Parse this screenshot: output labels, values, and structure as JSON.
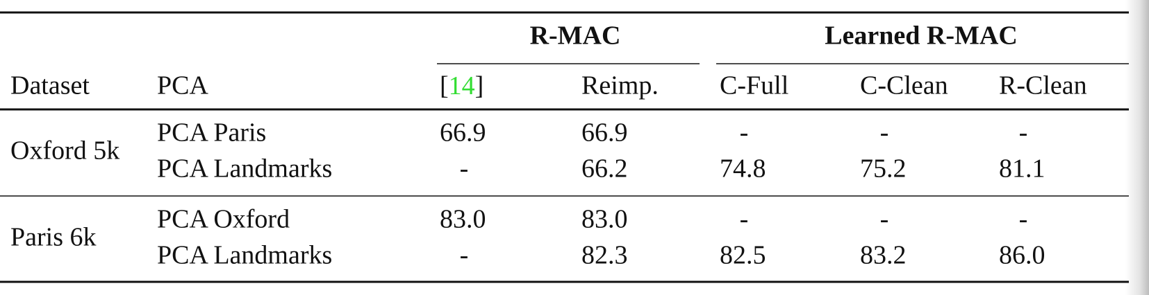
{
  "table": {
    "groups": [
      "R-MAC",
      "Learned R-MAC"
    ],
    "header": {
      "dataset": "Dataset",
      "pca": "PCA",
      "citation": {
        "open": "[",
        "ref": "14",
        "close": "]"
      },
      "columns": [
        "Reimp.",
        "C-Full",
        "C-Clean",
        "R-Clean"
      ]
    },
    "sections": [
      {
        "dataset": "Oxford 5k",
        "rows": [
          {
            "pca": "PCA Paris",
            "values": [
              "66.9",
              "66.9",
              "-",
              "-",
              "-"
            ]
          },
          {
            "pca": "PCA Landmarks",
            "values": [
              "-",
              "66.2",
              "74.8",
              "75.2",
              "81.1"
            ]
          }
        ]
      },
      {
        "dataset": "Paris 6k",
        "rows": [
          {
            "pca": "PCA Oxford",
            "values": [
              "83.0",
              "83.0",
              "-",
              "-",
              "-"
            ]
          },
          {
            "pca": "PCA Landmarks",
            "values": [
              "-",
              "82.3",
              "82.5",
              "83.2",
              "86.0"
            ]
          }
        ]
      }
    ]
  }
}
